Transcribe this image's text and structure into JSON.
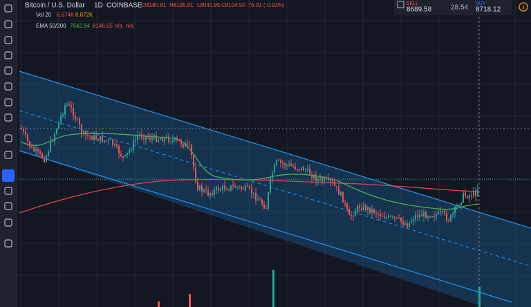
{
  "header": {
    "symbol": "Bitcoin / U.S. Dollar",
    "interval": "1D",
    "exchange": "COINBASE",
    "open": "O8180.81",
    "high": "H8195.81",
    "low": "L8041.95",
    "close": "C8104.50",
    "change": "-76.31 (-0.93%)"
  },
  "indicators": [
    {
      "name": "Vol 20",
      "values": [
        "6.674K",
        "8.872K"
      ]
    },
    {
      "name": "EMA 50/200",
      "values": [
        "7642.84",
        "8146.55",
        "n/a",
        "n/a"
      ]
    }
  ],
  "trade": {
    "sell_label": "SELL",
    "sell_price": "8689.58",
    "spread": "28.54",
    "buy_label": "BUY",
    "buy_price": "8718.12"
  }
}
